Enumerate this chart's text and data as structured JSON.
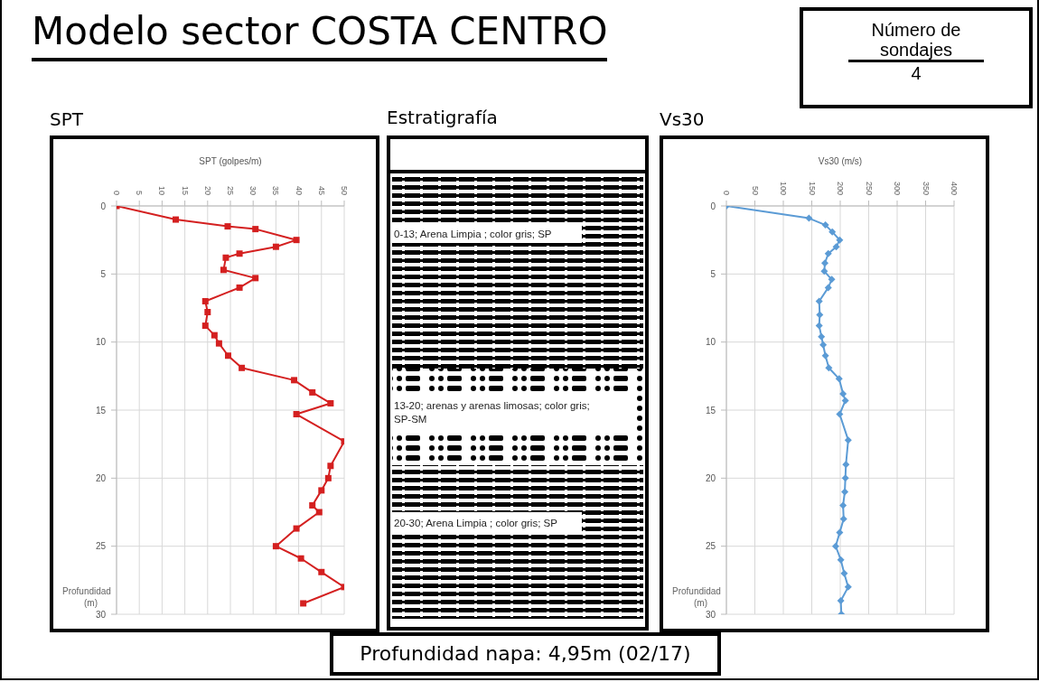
{
  "chart_data": [
    {
      "type": "other",
      "title": "Modelo sector COSTA CENTRO",
      "annotations": [
        "Número de sondajes",
        "4",
        "Profundidad napa: 4,95m (02/17)"
      ]
    },
    {
      "type": "line",
      "title": "SPT",
      "xlabel": "SPT (golpes/m)",
      "ylabel": "Profundidad (m)",
      "xlim": [
        0,
        50
      ],
      "xticks": [
        0,
        5,
        10,
        15,
        20,
        25,
        30,
        35,
        40,
        45,
        50
      ],
      "ylim": [
        30,
        0
      ],
      "yticks": [
        0,
        5,
        10,
        15,
        20,
        25,
        30
      ],
      "grid": true,
      "marker": "square",
      "line_style": "solid",
      "series": [
        {
          "color": "#d42020",
          "x": [
            0,
            13,
            24.4,
            30.5,
            39.5,
            35,
            27,
            24,
            23.5,
            30.5,
            27,
            19.5,
            20,
            19.5,
            21.5,
            22.5,
            24.5,
            27.5,
            39,
            43,
            47,
            39.5,
            50,
            47,
            46.5,
            45,
            43,
            44.5,
            39.5,
            35,
            40.5,
            45,
            50,
            41
          ],
          "values": [
            0,
            1,
            1.5,
            1.7,
            2.5,
            3,
            3.5,
            3.8,
            4.7,
            5.3,
            6,
            7,
            7.8,
            8.8,
            9.5,
            10.1,
            11,
            11.9,
            12.8,
            13.7,
            14.5,
            15.3,
            17.3,
            19.1,
            20,
            20.9,
            22,
            22.5,
            23.7,
            25,
            25.9,
            26.9,
            28,
            29.2
          ]
        }
      ]
    },
    {
      "type": "other",
      "title": "Estratigrafía",
      "annotations": [
        "0-13; Arena Limpia ; color gris; SP",
        "13-20; arenas y arenas limosas; color gris; SP-SM",
        "20-30; Arena Limpia ; color gris; SP"
      ]
    },
    {
      "type": "line",
      "title": "Vs30",
      "xlabel": "Vs30 (m/s)",
      "ylabel": "Profundidad (m)",
      "xlim": [
        0,
        400
      ],
      "xticks": [
        0,
        50,
        100,
        150,
        200,
        250,
        300,
        350,
        400
      ],
      "ylim": [
        30,
        0
      ],
      "yticks": [
        0,
        5,
        10,
        15,
        20,
        25,
        30
      ],
      "grid": true,
      "marker": "diamond",
      "line_style": "solid",
      "series": [
        {
          "color": "#5b9bd5",
          "x": [
            0,
            145,
            174,
            186,
            199,
            193,
            179,
            173,
            172,
            185,
            179,
            163,
            164,
            163,
            167,
            170,
            174,
            180,
            198,
            205,
            209,
            199,
            214,
            210,
            209,
            208,
            205,
            206,
            199,
            192,
            201,
            207,
            214,
            201,
            202
          ],
          "values": [
            0,
            0.9,
            1.4,
            1.9,
            2.5,
            3,
            3.5,
            4.2,
            4.8,
            5.4,
            6,
            7,
            8,
            8.8,
            9.6,
            10.2,
            11,
            11.9,
            12.7,
            13.8,
            14.3,
            15.3,
            17.2,
            19,
            20,
            21,
            22,
            23,
            24,
            25,
            26,
            27,
            28,
            29,
            30
          ]
        }
      ]
    }
  ]
}
